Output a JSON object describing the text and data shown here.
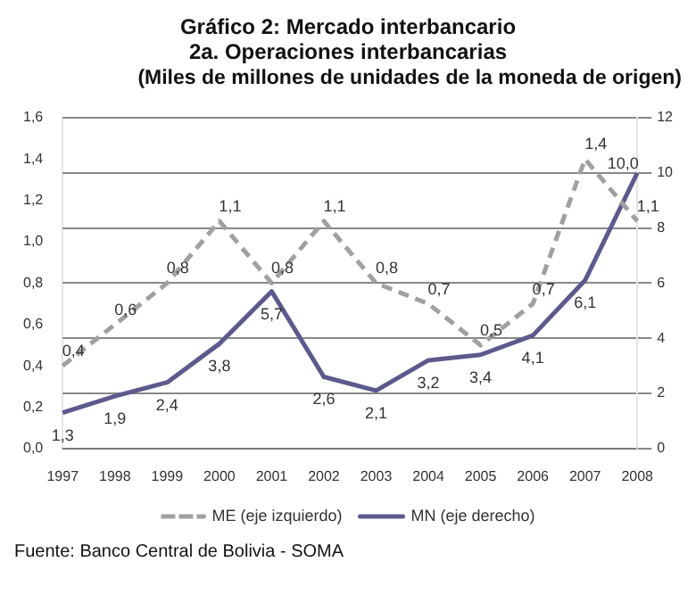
{
  "chart_data": {
    "type": "line",
    "title": "Gráfico 2: Mercado interbancario",
    "subtitle": "2a. Operaciones interbancarias",
    "annotations": [
      "(Miles de millones de unidades de la moneda de origen)",
      "Fuente: Banco Central de Bolivia - SOMA"
    ],
    "categories": [
      "1997",
      "1998",
      "1999",
      "2000",
      "2001",
      "2002",
      "2003",
      "2004",
      "2005",
      "2006",
      "2007",
      "2008"
    ],
    "series": [
      {
        "name": "ME (eje izquierdo)",
        "color": "#a0a0a0",
        "line_style": "dashed",
        "values": [
          0.4,
          0.6,
          0.8,
          1.1,
          0.8,
          1.1,
          0.8,
          0.7,
          0.5,
          0.7,
          1.4,
          1.1
        ],
        "value_labels": [
          "0,4",
          "0,6",
          "0,8",
          "1,1",
          "0,8",
          "1,1",
          "0,8",
          "0,7",
          "0,5",
          "0,7",
          "1,4",
          "1,1"
        ]
      },
      {
        "name": "MN (eje derecho)",
        "color": "#5c5a8c",
        "line_style": "solid",
        "axis": "y2",
        "values": [
          1.3,
          1.9,
          2.4,
          3.8,
          5.7,
          2.6,
          2.1,
          3.2,
          3.4,
          4.1,
          6.1,
          10.0
        ],
        "value_labels": [
          "1,3",
          "1,9",
          "2,4",
          "3,8",
          "5,7",
          "2,6",
          "2,1",
          "3,2",
          "3,4",
          "4,1",
          "6,1",
          "10,0"
        ]
      }
    ],
    "ylim": [
      0,
      1.6
    ],
    "yticks": [
      {
        "value": 0,
        "label": "0,0"
      },
      {
        "value": 0.2,
        "label": "0,2"
      },
      {
        "value": 0.4,
        "label": "0,4"
      },
      {
        "value": 0.6,
        "label": "0,6"
      },
      {
        "value": 0.8,
        "label": "0,8"
      },
      {
        "value": 1.0,
        "label": "1,0"
      },
      {
        "value": 1.2,
        "label": "1,2"
      },
      {
        "value": 1.4,
        "label": "1,4"
      },
      {
        "value": 1.6,
        "label": "1,6"
      }
    ],
    "y2lim": [
      0,
      12
    ],
    "y2ticks": [
      0,
      2,
      4,
      6,
      8,
      10,
      12
    ],
    "grid": "y",
    "legend": "bottom",
    "marker": "none"
  }
}
